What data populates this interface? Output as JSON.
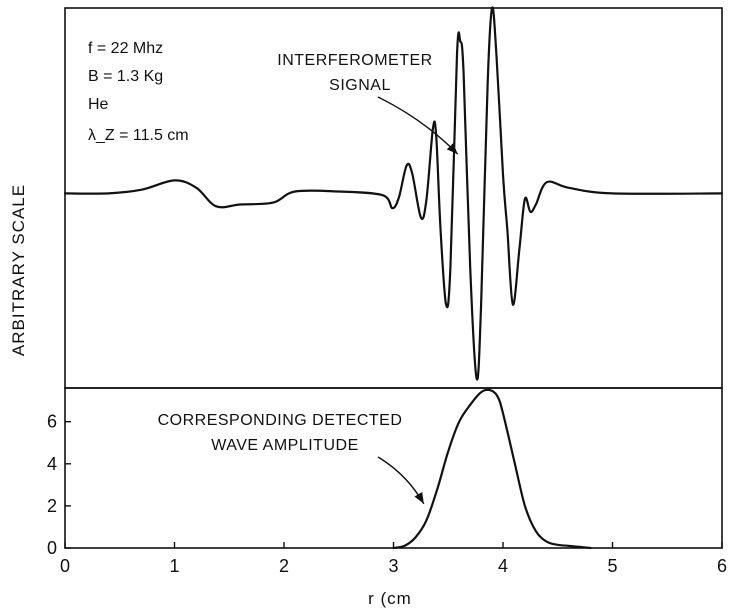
{
  "chart_data": {
    "type": "line",
    "xlabel": "r (cm",
    "ylabel": "ARBITRARY SCALE",
    "xlim": [
      0,
      6
    ],
    "x_ticks": [
      "0",
      "1",
      "2",
      "3",
      "4",
      "5",
      "6"
    ],
    "panels": [
      {
        "name": "top",
        "y_ticks": [],
        "ylim": [
          -1.05,
          1.0
        ],
        "annotation_lines": [
          "INTERFEROMETER",
          "SIGNAL"
        ],
        "annotation_target": [
          3.55,
          0.05
        ],
        "parameters": [
          "f = 22 Mhz",
          "B = 1.3 Kg",
          "He",
          "λ_Z = 11.5 cm"
        ],
        "series": [
          {
            "points": [
              [
                0.0,
                0.0
              ],
              [
                0.4,
                0.0
              ],
              [
                0.7,
                0.02
              ],
              [
                1.0,
                0.07
              ],
              [
                1.2,
                0.03
              ],
              [
                1.38,
                -0.07
              ],
              [
                1.6,
                -0.06
              ],
              [
                1.9,
                -0.05
              ],
              [
                2.1,
                0.01
              ],
              [
                2.5,
                0.01
              ],
              [
                2.9,
                -0.01
              ],
              [
                2.99,
                -0.08
              ],
              [
                3.05,
                -0.02
              ],
              [
                3.12,
                0.15
              ],
              [
                3.17,
                0.11
              ],
              [
                3.25,
                -0.13
              ],
              [
                3.3,
                -0.04
              ],
              [
                3.36,
                0.35
              ],
              [
                3.39,
                0.31
              ],
              [
                3.43,
                -0.2
              ],
              [
                3.48,
                -0.6
              ],
              [
                3.52,
                -0.4
              ],
              [
                3.58,
                0.75
              ],
              [
                3.61,
                0.82
              ],
              [
                3.64,
                0.65
              ],
              [
                3.7,
                -0.4
              ],
              [
                3.76,
                -1.0
              ],
              [
                3.8,
                -0.6
              ],
              [
                3.86,
                0.6
              ],
              [
                3.9,
                1.0
              ],
              [
                3.94,
                0.75
              ],
              [
                4.0,
                0.1
              ],
              [
                4.04,
                -0.2
              ],
              [
                4.09,
                -0.6
              ],
              [
                4.15,
                -0.3
              ],
              [
                4.2,
                -0.03
              ],
              [
                4.25,
                -0.1
              ],
              [
                4.3,
                -0.06
              ],
              [
                4.4,
                0.06
              ],
              [
                4.6,
                0.03
              ],
              [
                5.0,
                0.0
              ],
              [
                6.0,
                0.0
              ]
            ]
          }
        ]
      },
      {
        "name": "bottom",
        "y_ticks": [
          "0",
          "2",
          "4",
          "6"
        ],
        "ylim": [
          0,
          7.6
        ],
        "annotation_lines": [
          "CORRESPONDING DETECTED",
          "WAVE AMPLITUDE"
        ],
        "annotation_target": [
          3.35,
          2.1
        ],
        "series": [
          {
            "points": [
              [
                3.0,
                0.0
              ],
              [
                3.1,
                0.1
              ],
              [
                3.2,
                0.5
              ],
              [
                3.3,
                1.3
              ],
              [
                3.4,
                2.8
              ],
              [
                3.5,
                4.6
              ],
              [
                3.6,
                6.0
              ],
              [
                3.7,
                6.8
              ],
              [
                3.8,
                7.4
              ],
              [
                3.88,
                7.5
              ],
              [
                3.95,
                7.2
              ],
              [
                4.0,
                6.4
              ],
              [
                4.1,
                4.2
              ],
              [
                4.2,
                2.0
              ],
              [
                4.3,
                0.8
              ],
              [
                4.4,
                0.3
              ],
              [
                4.5,
                0.15
              ],
              [
                4.6,
                0.1
              ],
              [
                4.7,
                0.05
              ],
              [
                4.8,
                0.0
              ]
            ]
          }
        ]
      }
    ]
  }
}
